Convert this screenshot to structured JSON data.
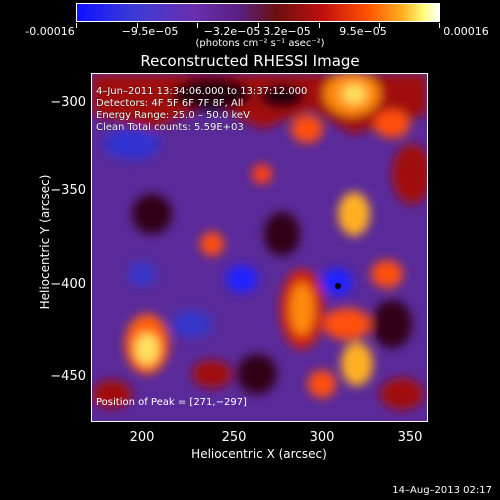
{
  "colorbar": {
    "labels": [
      "-0.00016",
      "−9.5e−05",
      "−3.2e−05",
      "3.2e−05",
      "9.5e−05",
      "0.00016"
    ],
    "units": "(photons cm⁻² s⁻¹ asec⁻²)"
  },
  "image": {
    "title": "Reconstructed RHESSI Image",
    "time": "4–Jun–2011 13:34:06.000 to 13:37:12.000",
    "detectors": "Detectors: 4F 5F 6F 7F 8F, All",
    "energy": "Energy Range: 25.0 – 50.0 keV",
    "method": "Clean     Total counts: 5.59E+03",
    "peak": "Position of Peak = [271,−297]"
  },
  "axes": {
    "xlabel": "Heliocentric X (arcsec)",
    "ylabel": "Heliocentric Y (arcsec)",
    "xticks": [
      "200",
      "250",
      "300",
      "350"
    ],
    "yticks": [
      "−300",
      "−350",
      "−400",
      "−450"
    ]
  },
  "footer": {
    "date": "14–Aug–2013 02:17"
  }
}
